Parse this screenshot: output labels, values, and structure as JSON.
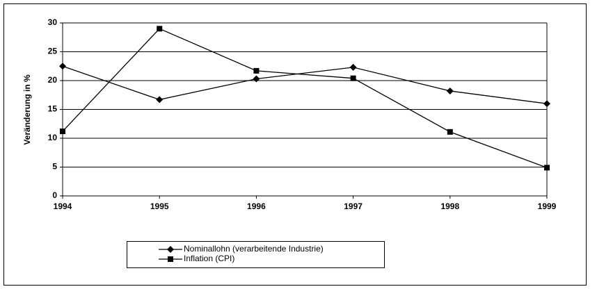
{
  "chart_data": {
    "type": "line",
    "y_label": "Veränderung in %",
    "x": [
      1994,
      1995,
      1996,
      1997,
      1998,
      1999
    ],
    "xlim": [
      1994,
      1999
    ],
    "xticks": [
      1994,
      1995,
      1996,
      1997,
      1998,
      1999
    ],
    "ylim": [
      0,
      30
    ],
    "yticks": [
      0,
      5,
      10,
      15,
      20,
      25,
      30
    ],
    "grid": true,
    "series": [
      {
        "name": "Nominallohn (verarbeitende Industrie)",
        "color": "#000000",
        "marker": "diamond",
        "values": [
          22.5,
          16.7,
          20.3,
          22.3,
          18.2,
          16.0
        ]
      },
      {
        "name": "Inflation (CPI)",
        "color": "#000000",
        "marker": "square",
        "values": [
          11.2,
          29.0,
          21.7,
          20.4,
          11.1,
          4.9
        ]
      }
    ]
  }
}
